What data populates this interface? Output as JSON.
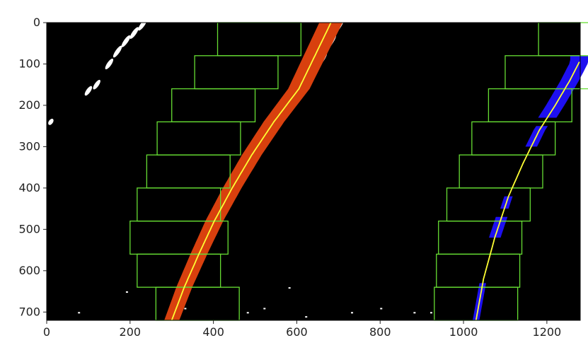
{
  "chart_data": {
    "type": "scatter",
    "title": "",
    "xlabel": "",
    "ylabel": "",
    "xlim": [
      0,
      1280
    ],
    "ylim": [
      720,
      0
    ],
    "y_inverted": true,
    "grid": false,
    "legend": "none",
    "x_ticks": [
      0,
      200,
      400,
      600,
      800,
      1000,
      1200
    ],
    "y_ticks": [
      0,
      100,
      200,
      300,
      400,
      500,
      600,
      700
    ],
    "background_color": "#000000",
    "colors": {
      "left_lane": "#d8400e",
      "right_lane": "#1e10f0",
      "fit_line": "#ffff33",
      "window": "#66dd33",
      "raw_pixels": "#ffffff"
    },
    "windows": {
      "window_height": 80,
      "left_lane": [
        {
          "y_bottom": 720,
          "x_min": 262,
          "x_max": 462
        },
        {
          "y_bottom": 640,
          "x_min": 217,
          "x_max": 417
        },
        {
          "y_bottom": 560,
          "x_min": 200,
          "x_max": 435
        },
        {
          "y_bottom": 480,
          "x_min": 217,
          "x_max": 417
        },
        {
          "y_bottom": 400,
          "x_min": 240,
          "x_max": 440
        },
        {
          "y_bottom": 320,
          "x_min": 265,
          "x_max": 465
        },
        {
          "y_bottom": 240,
          "x_min": 300,
          "x_max": 500
        },
        {
          "y_bottom": 160,
          "x_min": 355,
          "x_max": 555
        },
        {
          "y_bottom": 80,
          "x_min": 410,
          "x_max": 610
        }
      ],
      "right_lane": [
        {
          "y_bottom": 720,
          "x_min": 930,
          "x_max": 1130
        },
        {
          "y_bottom": 640,
          "x_min": 935,
          "x_max": 1135
        },
        {
          "y_bottom": 560,
          "x_min": 940,
          "x_max": 1140
        },
        {
          "y_bottom": 480,
          "x_min": 960,
          "x_max": 1160
        },
        {
          "y_bottom": 400,
          "x_min": 990,
          "x_max": 1190
        },
        {
          "y_bottom": 320,
          "x_min": 1020,
          "x_max": 1220
        },
        {
          "y_bottom": 240,
          "x_min": 1060,
          "x_max": 1260
        },
        {
          "y_bottom": 160,
          "x_min": 1100,
          "x_max": 1300
        },
        {
          "y_bottom": 80,
          "x_min": 1180,
          "x_max": 1380
        }
      ]
    },
    "series": [
      {
        "x": [
          300,
          330,
          365,
          402,
          445,
          492,
          545,
          605,
          682
        ],
        "y": [
          720,
          640,
          560,
          480,
          400,
          320,
          240,
          160,
          0
        ]
      },
      {
        "x": [
          1030,
          1048,
          1075,
          1108,
          1143,
          1182,
          1220,
          1255,
          1278
        ],
        "y": [
          720,
          620,
          520,
          420,
          340,
          260,
          200,
          140,
          95
        ]
      }
    ]
  }
}
